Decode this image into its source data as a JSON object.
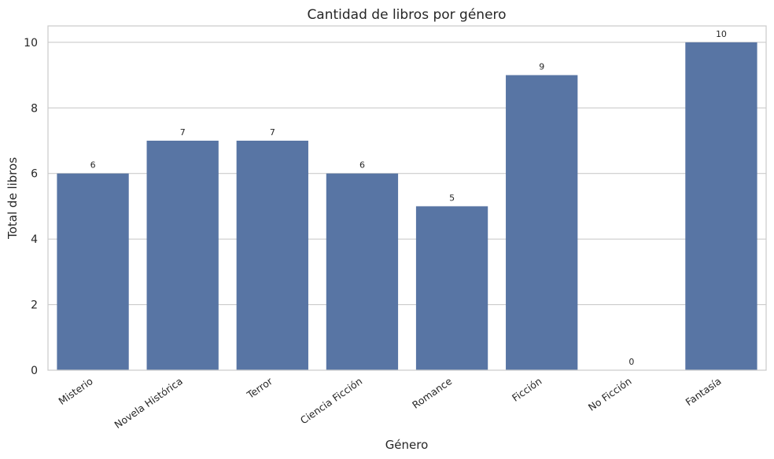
{
  "chart_data": {
    "type": "bar",
    "title": "Cantidad de libros por género",
    "xlabel": "Género",
    "ylabel": "Total de libros",
    "categories": [
      "Misterio",
      "Novela Histórica",
      "Terror",
      "Ciencia Ficción",
      "Romance",
      "Ficción",
      "No Ficción",
      "Fantasía"
    ],
    "values": [
      6,
      7,
      7,
      6,
      5,
      9,
      0,
      10
    ],
    "data_labels": [
      "6",
      "7",
      "7",
      "6",
      "5",
      "9",
      "0",
      "10"
    ],
    "yticks": [
      0,
      2,
      4,
      6,
      8,
      10
    ],
    "ylim": [
      0,
      10.5
    ],
    "grid": true,
    "bar_color": "#5875a4",
    "grid_color": "#cccccc",
    "spine_color": "#cccccc"
  }
}
